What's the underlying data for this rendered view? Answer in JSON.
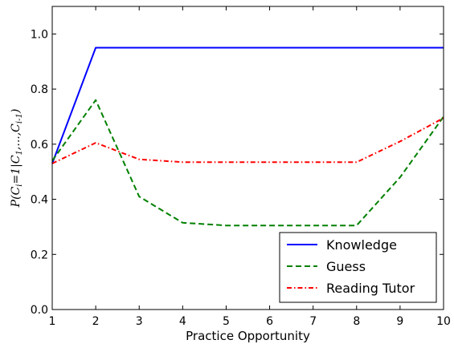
{
  "chart_data": {
    "type": "line",
    "xlabel": "Practice Opportunity",
    "ylabel": "P(C_i = 1 | C_1, ..., C_{i-1})",
    "ylabel_parts": {
      "p": "P(C",
      "i": "i",
      "eq": "=1|C",
      "one": "1",
      "mid": ",...,C",
      "im1": "i-1",
      "close": ")"
    },
    "xlim": [
      1,
      10
    ],
    "ylim": [
      0.0,
      1.1
    ],
    "x_ticks": [
      1,
      2,
      3,
      4,
      5,
      6,
      7,
      8,
      9,
      10
    ],
    "y_ticks": [
      "0.0",
      "0.2",
      "0.4",
      "0.6",
      "0.8",
      "1.0"
    ],
    "grid": false,
    "legend_position": "bottom-right",
    "x": [
      1,
      2,
      3,
      4,
      5,
      6,
      7,
      8,
      9,
      10
    ],
    "series": [
      {
        "name": "Knowledge",
        "color": "#0000ff",
        "style": "solid",
        "values": [
          0.53,
          0.95,
          0.95,
          0.95,
          0.95,
          0.95,
          0.95,
          0.95,
          0.95,
          0.95
        ]
      },
      {
        "name": "Guess",
        "color": "#008000",
        "style": "dashed",
        "values": [
          0.54,
          0.76,
          0.41,
          0.315,
          0.305,
          0.305,
          0.305,
          0.305,
          0.48,
          0.7
        ]
      },
      {
        "name": "Reading Tutor",
        "color": "#ff0000",
        "style": "dashdot",
        "values": [
          0.53,
          0.605,
          0.545,
          0.535,
          0.535,
          0.535,
          0.535,
          0.535,
          0.61,
          0.695
        ]
      }
    ]
  }
}
